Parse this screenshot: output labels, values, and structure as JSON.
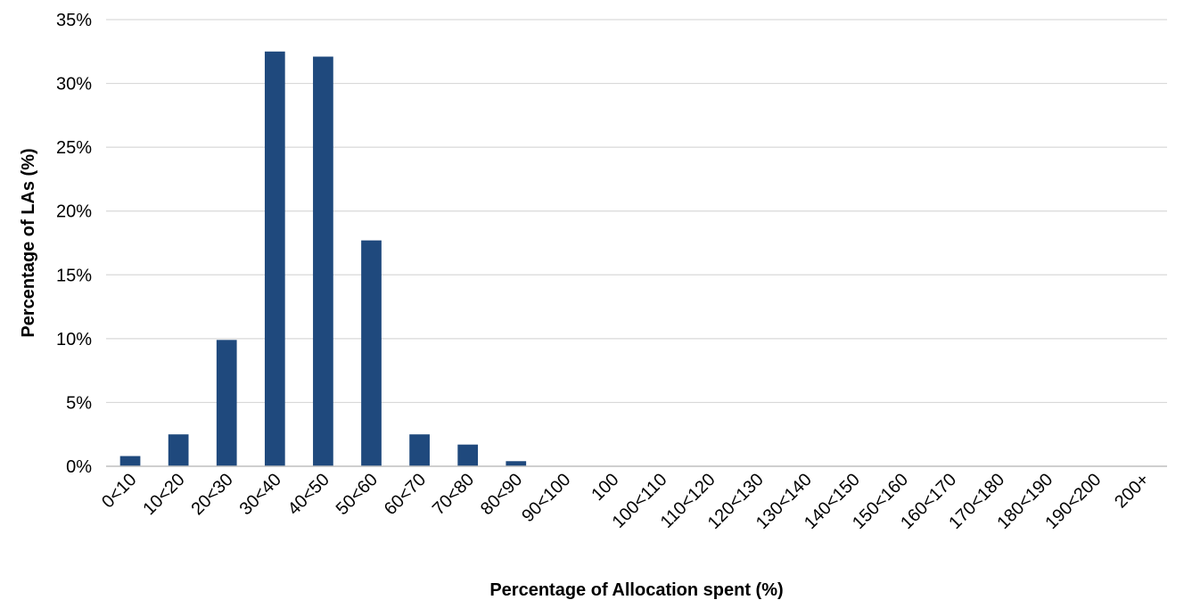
{
  "chart_data": {
    "type": "bar",
    "title": "",
    "xlabel": "Percentage of Allocation spent (%)",
    "ylabel": "Percentage of LAs (%)",
    "ylim": [
      0,
      35
    ],
    "yticks": [
      "0%",
      "5%",
      "10%",
      "15%",
      "20%",
      "25%",
      "30%",
      "35%"
    ],
    "grid": true,
    "legend": "none",
    "bar_color": "#1F497D",
    "categories": [
      "0<10",
      "10<20",
      "20<30",
      "30<40",
      "40<50",
      "50<60",
      "60<70",
      "70<80",
      "80<90",
      "90<100",
      "100",
      "100<110",
      "110<120",
      "120<130",
      "130<140",
      "140<150",
      "150<160",
      "160<170",
      "170<180",
      "180<190",
      "190<200",
      "200+"
    ],
    "values": [
      0.8,
      2.5,
      9.9,
      32.5,
      32.1,
      17.7,
      2.5,
      1.7,
      0.4,
      0,
      0,
      0,
      0,
      0,
      0,
      0,
      0,
      0,
      0,
      0,
      0,
      0
    ]
  }
}
